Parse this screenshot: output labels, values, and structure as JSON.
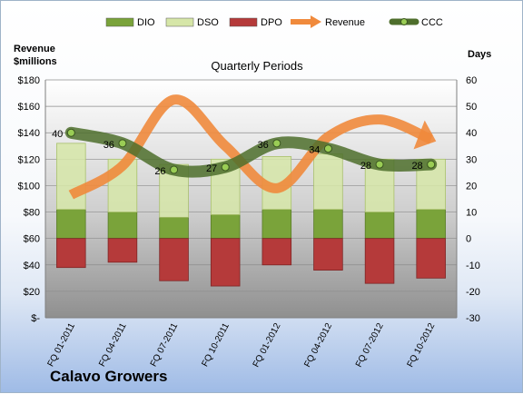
{
  "company": "Calavo Growers",
  "chart_data": {
    "type": "bar",
    "title": "Quarterly Periods",
    "ylabel_left": "Revenue\n$millions",
    "ylabel_right": "Days",
    "categories": [
      "FQ 01-2011",
      "FQ 04-2011",
      "FQ 07-2011",
      "FQ 10-2011",
      "FQ 01-2012",
      "FQ 04-2012",
      "FQ 07-2012",
      "FQ 10-2012"
    ],
    "left_axis": {
      "min": 0,
      "max": 180,
      "step": 20,
      "ticks": [
        "$-",
        "$20",
        "$40",
        "$60",
        "$80",
        "$100",
        "$120",
        "$140",
        "$160",
        "$180"
      ]
    },
    "right_axis": {
      "min": -30,
      "max": 60,
      "step": 10,
      "ticks": [
        "-30",
        "-20",
        "-10",
        "0",
        "10",
        "20",
        "30",
        "40",
        "50",
        "60"
      ]
    },
    "legend": [
      "DIO",
      "DSO",
      "DPO",
      "Revenue",
      "CCC"
    ],
    "legend_position": "top",
    "series": [
      {
        "name": "DIO",
        "axis": "right",
        "color": "#7aa33a",
        "values": [
          11,
          10,
          8,
          9,
          11,
          11,
          10,
          11
        ]
      },
      {
        "name": "DSO",
        "axis": "right",
        "color": "#d6e6a8",
        "values": [
          25,
          20,
          20,
          21,
          20,
          21,
          20,
          19
        ]
      },
      {
        "name": "DPO",
        "axis": "right",
        "color": "#b53a3a",
        "values": [
          -11,
          -9,
          -16,
          -18,
          -10,
          -12,
          -17,
          -15
        ]
      },
      {
        "name": "Revenue",
        "axis": "left",
        "color": "#f08a3c",
        "values": [
          93,
          115,
          165,
          130,
          98,
          137,
          150,
          135
        ]
      },
      {
        "name": "CCC",
        "axis": "right",
        "color": "#4e6e2c",
        "values": [
          40,
          36,
          26,
          27,
          36,
          34,
          28,
          28
        ],
        "labels": [
          "40",
          "36",
          "26",
          "27",
          "36",
          "34",
          "28",
          "28"
        ]
      }
    ]
  }
}
